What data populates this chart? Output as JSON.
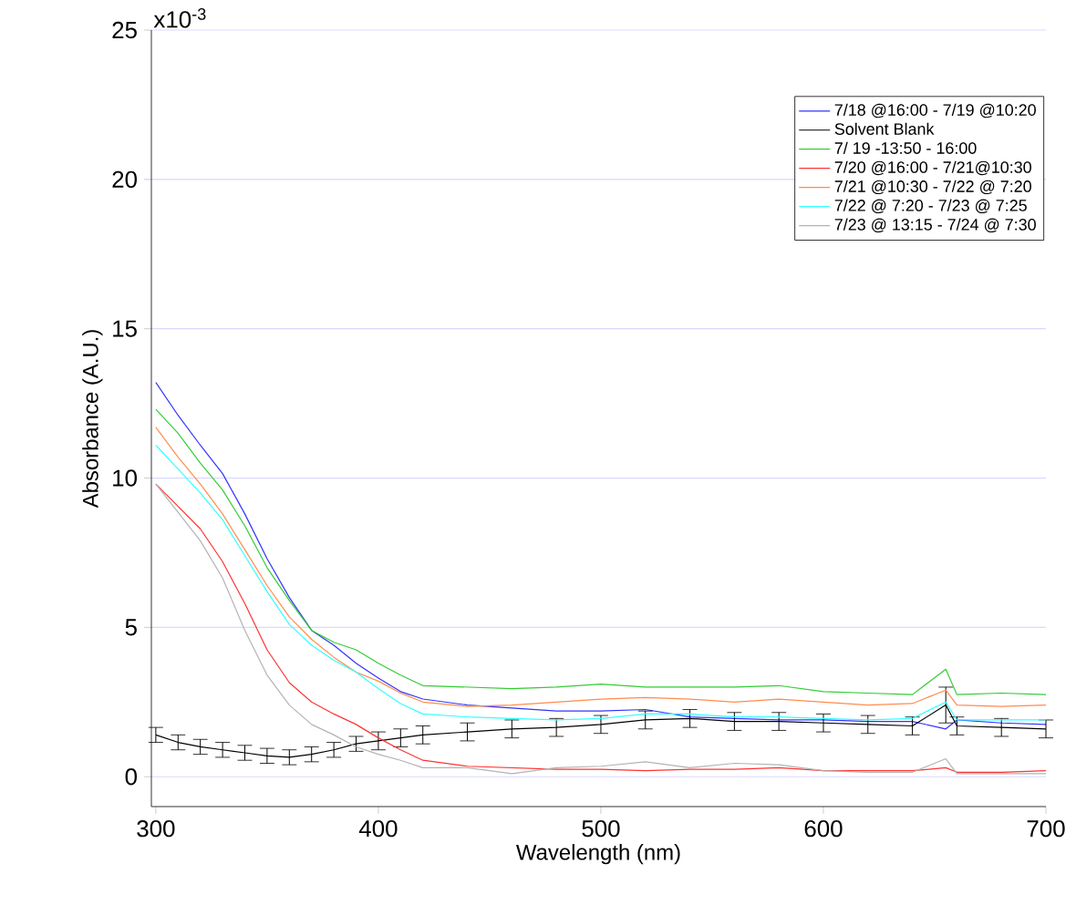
{
  "chart_data": {
    "type": "line",
    "xlabel": "Wavelength (nm)",
    "ylabel": "Absorbance (A.U.)",
    "annotations": [
      "x10$^{-3}$"
    ],
    "x": [
      300,
      310,
      320,
      330,
      340,
      350,
      360,
      370,
      380,
      390,
      400,
      410,
      420,
      440,
      460,
      480,
      500,
      520,
      540,
      560,
      580,
      600,
      620,
      640,
      655,
      660,
      680,
      700
    ],
    "series": [
      {
        "name": "7/18 @16:00 - 7/19 @10:20",
        "color": "#3333ff",
        "values": [
          13.2,
          12.1,
          11.1,
          10.15,
          8.8,
          7.3,
          6.0,
          4.9,
          4.4,
          3.8,
          3.3,
          2.85,
          2.6,
          2.4,
          2.3,
          2.2,
          2.2,
          2.25,
          2.0,
          1.95,
          1.9,
          1.9,
          1.85,
          1.85,
          1.6,
          1.9,
          1.8,
          1.75
        ]
      },
      {
        "name": "Solvent Blank",
        "color": "#000000",
        "values": [
          1.4,
          1.15,
          1.0,
          0.9,
          0.8,
          0.7,
          0.65,
          0.75,
          0.9,
          1.1,
          1.2,
          1.3,
          1.4,
          1.5,
          1.6,
          1.65,
          1.75,
          1.9,
          1.95,
          1.85,
          1.85,
          1.8,
          1.75,
          1.7,
          2.4,
          1.7,
          1.65,
          1.6
        ],
        "errors": [
          0.25,
          0.25,
          0.25,
          0.25,
          0.25,
          0.25,
          0.25,
          0.25,
          0.25,
          0.25,
          0.3,
          0.3,
          0.3,
          0.3,
          0.3,
          0.3,
          0.3,
          0.3,
          0.3,
          0.3,
          0.3,
          0.3,
          0.3,
          0.3,
          0.6,
          0.3,
          0.3,
          0.3
        ]
      },
      {
        "name": "7/ 19 -13:50 - 16:00",
        "color": "#33cc33",
        "values": [
          12.3,
          11.5,
          10.5,
          9.6,
          8.4,
          7.0,
          5.9,
          4.9,
          4.5,
          4.25,
          3.8,
          3.4,
          3.05,
          3.0,
          2.95,
          3.0,
          3.1,
          3.0,
          3.0,
          3.0,
          3.05,
          2.85,
          2.8,
          2.75,
          3.6,
          2.75,
          2.8,
          2.75
        ]
      },
      {
        "name": "7/20 @16:00 - 7/21@10:30",
        "color": "#ff3333",
        "values": [
          9.8,
          9.05,
          8.3,
          7.2,
          5.8,
          4.25,
          3.15,
          2.5,
          2.1,
          1.75,
          1.3,
          0.9,
          0.55,
          0.35,
          0.3,
          0.25,
          0.25,
          0.2,
          0.25,
          0.25,
          0.3,
          0.2,
          0.2,
          0.2,
          0.3,
          0.15,
          0.15,
          0.2
        ]
      },
      {
        "name": "7/21 @10:30 - 7/22 @ 7:20",
        "color": "#ff8c4d",
        "values": [
          11.7,
          10.7,
          9.8,
          8.8,
          7.6,
          6.4,
          5.35,
          4.6,
          4.0,
          3.5,
          3.2,
          2.8,
          2.5,
          2.35,
          2.4,
          2.5,
          2.6,
          2.65,
          2.6,
          2.5,
          2.6,
          2.5,
          2.4,
          2.45,
          2.9,
          2.4,
          2.35,
          2.4
        ]
      },
      {
        "name": "7/22 @ 7:20 - 7/23 @ 7:25",
        "color": "#33ffff",
        "values": [
          11.1,
          10.3,
          9.5,
          8.6,
          7.4,
          6.2,
          5.1,
          4.4,
          3.9,
          3.5,
          2.95,
          2.45,
          2.1,
          2.0,
          1.95,
          1.9,
          1.95,
          2.1,
          2.1,
          2.0,
          2.0,
          1.95,
          1.9,
          1.95,
          2.5,
          1.9,
          1.9,
          1.9
        ]
      },
      {
        "name": "7/23  @ 13:15 - 7/24 @ 7:30",
        "color": "#b3b3b3",
        "values": [
          9.8,
          8.85,
          7.9,
          6.65,
          4.9,
          3.4,
          2.4,
          1.75,
          1.4,
          1.0,
          0.75,
          0.55,
          0.3,
          0.3,
          0.1,
          0.3,
          0.35,
          0.5,
          0.3,
          0.45,
          0.4,
          0.2,
          0.15,
          0.15,
          0.6,
          0.1,
          0.1,
          0.1
        ]
      }
    ],
    "xlim": [
      298,
      700
    ],
    "ylim": [
      -1,
      25
    ],
    "xticks": [
      300,
      400,
      500,
      600,
      700
    ],
    "yticks": [
      0,
      5,
      10,
      15,
      20,
      25
    ],
    "grid": "y",
    "legend": "top right",
    "marker": "none",
    "line_style": "solid"
  }
}
